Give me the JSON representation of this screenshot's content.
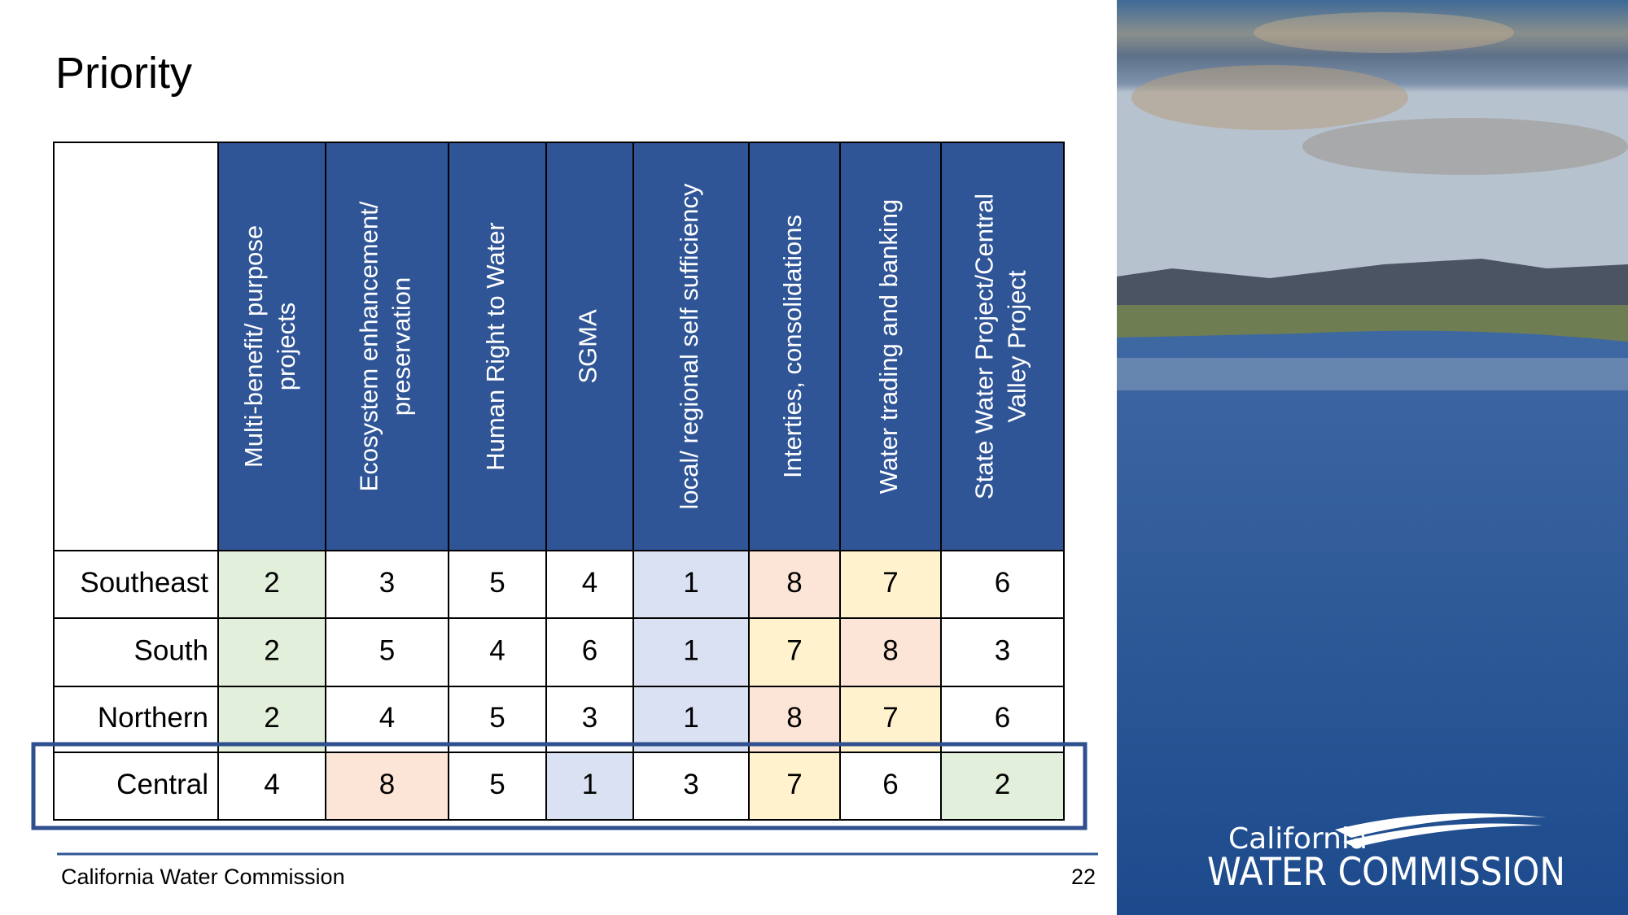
{
  "title": "Priority",
  "table": {
    "columns": [
      [
        "Multi-benefit/ purpose",
        "projects"
      ],
      [
        "Ecosystem enhancement/",
        "preservation"
      ],
      [
        "Human Right to Water"
      ],
      [
        "SGMA"
      ],
      [
        "local/ regional self sufficiency"
      ],
      [
        "Interties, consolidations"
      ],
      [
        "Water trading and banking"
      ],
      [
        "State Water Project/Central",
        "Valley Project"
      ]
    ],
    "header_color": "#2f5597",
    "rows": [
      {
        "label": "Southeast",
        "values": [
          2,
          3,
          5,
          4,
          1,
          8,
          7,
          6
        ],
        "colors": [
          "#e2efda",
          "#ffffff",
          "#ffffff",
          "#ffffff",
          "#d9e1f2",
          "#fce4d6",
          "#fff2cc",
          "#ffffff"
        ]
      },
      {
        "label": "South",
        "values": [
          2,
          5,
          4,
          6,
          1,
          7,
          8,
          3
        ],
        "colors": [
          "#e2efda",
          "#ffffff",
          "#ffffff",
          "#ffffff",
          "#d9e1f2",
          "#fff2cc",
          "#fce4d6",
          "#ffffff"
        ]
      },
      {
        "label": "Northern",
        "values": [
          2,
          4,
          5,
          3,
          1,
          8,
          7,
          6
        ],
        "colors": [
          "#e2efda",
          "#ffffff",
          "#ffffff",
          "#ffffff",
          "#d9e1f2",
          "#fce4d6",
          "#fff2cc",
          "#ffffff"
        ]
      },
      {
        "label": "Central",
        "values": [
          4,
          8,
          5,
          1,
          3,
          7,
          6,
          2
        ],
        "colors": [
          "#ffffff",
          "#fce4d6",
          "#ffffff",
          "#d9e1f2",
          "#ffffff",
          "#fff2cc",
          "#ffffff",
          "#e2efda"
        ]
      }
    ]
  },
  "footer": {
    "left": "California Water Commission",
    "page": "22"
  },
  "logo": {
    "top": "California",
    "bottom": "WATER COMMISSION"
  }
}
